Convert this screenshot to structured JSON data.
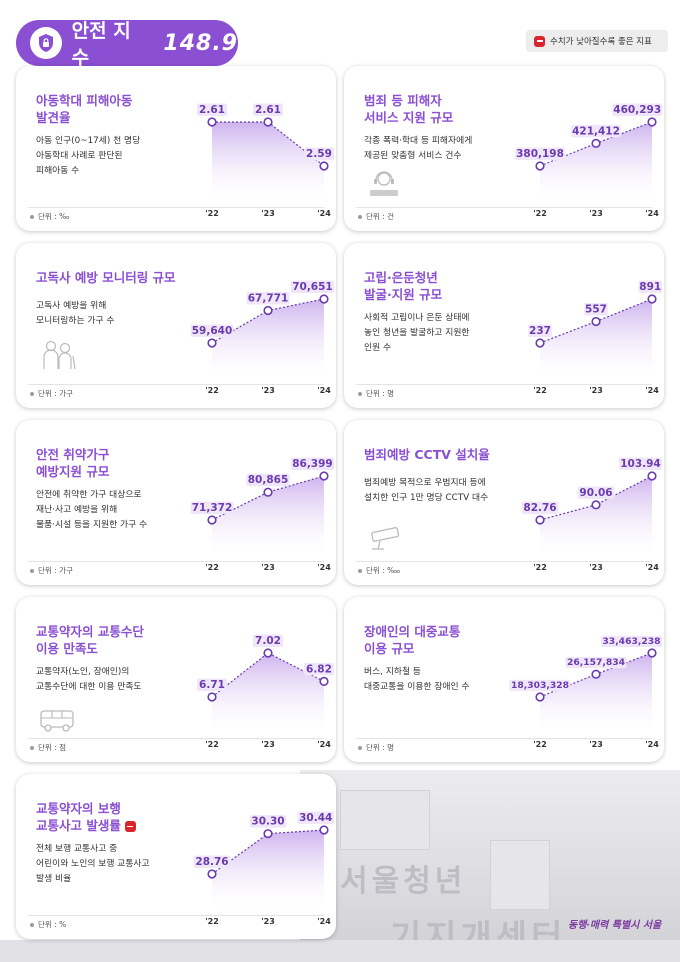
{
  "header": {
    "title": "안전 지수",
    "score": "148.9",
    "legend_note": "수치가 낮아질수록 좋은 지표"
  },
  "colors": {
    "accent": "#8a4fd3",
    "negative_badge": "#d9262c",
    "card_bg": "#ffffff"
  },
  "cards": [
    {
      "title": "아동학대 피해아동\n발견율",
      "desc": "아동 인구(0~17세) 천 명당\n아동학대 사례로 판단된\n피해아동 수",
      "unit": "단위 : ‰",
      "icon": null,
      "negative_indicator": false,
      "years": [
        "'22",
        "'23",
        "'24"
      ],
      "values": [
        2.61,
        2.61,
        2.59
      ],
      "labels": [
        "2.61",
        "2.61",
        "2.59"
      ]
    },
    {
      "title": "범죄 등 피해자\n서비스 지원 규모",
      "desc": "각종 폭력·학대 등 피해자에게\n제공된 맞춤형 서비스 건수",
      "unit": "단위 : 건",
      "icon": "headset-operator-icon",
      "negative_indicator": false,
      "years": [
        "'22",
        "'23",
        "'24"
      ],
      "values": [
        380198,
        421412,
        460293
      ],
      "labels": [
        "380,198",
        "421,412",
        "460,293"
      ]
    },
    {
      "title": "고독사 예방 모니터링 규모",
      "desc": "고독사 예방을 위해\n모니터링하는 가구 수",
      "unit": "단위 : 가구",
      "icon": "elderly-couple-icon",
      "negative_indicator": false,
      "years": [
        "'22",
        "'23",
        "'24"
      ],
      "values": [
        59640,
        67771,
        70651
      ],
      "labels": [
        "59,640",
        "67,771",
        "70,651"
      ]
    },
    {
      "title": "고립·은둔청년\n발굴·지원 규모",
      "desc": "사회적 고립이나 은둔 상태에\n놓인 청년을 발굴하고 지원한\n인원 수",
      "unit": "단위 : 명",
      "icon": null,
      "negative_indicator": false,
      "years": [
        "'22",
        "'23",
        "'24"
      ],
      "values": [
        237,
        557,
        891
      ],
      "labels": [
        "237",
        "557",
        "891"
      ]
    },
    {
      "title": "안전 취약가구\n예방지원 규모",
      "desc": "안전에 취약한 가구 대상으로\n재난·사고 예방을 위해\n물품·시설 등을 지원한 가구 수",
      "unit": "단위 : 가구",
      "icon": null,
      "negative_indicator": false,
      "years": [
        "'22",
        "'23",
        "'24"
      ],
      "values": [
        71372,
        80865,
        86399
      ],
      "labels": [
        "71,372",
        "80,865",
        "86,399"
      ]
    },
    {
      "title": "범죄예방 CCTV 설치율",
      "desc": "범죄예방 목적으로 우범지대 등에\n설치한 인구 1만 명당 CCTV 대수",
      "unit": "단위 : ‱",
      "icon": "cctv-icon",
      "negative_indicator": false,
      "years": [
        "'22",
        "'23",
        "'24"
      ],
      "values": [
        82.76,
        90.06,
        103.94
      ],
      "labels": [
        "82.76",
        "90.06",
        "103.94"
      ]
    },
    {
      "title": "교통약자의 교통수단\n이용 만족도",
      "desc": "교통약자(노인, 장애인)의\n교통수단에 대한 이용 만족도",
      "unit": "단위 : 점",
      "icon": "bus-icon",
      "negative_indicator": false,
      "years": [
        "'22",
        "'23",
        "'24"
      ],
      "values": [
        6.71,
        7.02,
        6.82
      ],
      "labels": [
        "6.71",
        "7.02",
        "6.82"
      ]
    },
    {
      "title": "장애인의 대중교통\n이용 규모",
      "desc": "버스, 지하철 등\n대중교통을 이용한 장애인 수",
      "unit": "단위 : 명",
      "icon": null,
      "negative_indicator": false,
      "years": [
        "'22",
        "'23",
        "'24"
      ],
      "values": [
        18303328,
        26157834,
        33463238
      ],
      "labels": [
        "18,303,328",
        "26,157,834",
        "33,463,238"
      ]
    },
    {
      "title": "교통약자의 보행\n교통사고 발생률",
      "desc": "전체 보행 교통사고 중\n어린이와 노인의 보행 교통사고\n발생 비율",
      "unit": "단위 : %",
      "icon": null,
      "negative_indicator": true,
      "years": [
        "'22",
        "'23",
        "'24"
      ],
      "values": [
        28.76,
        30.3,
        30.44
      ],
      "labels": [
        "28.76",
        "30.30",
        "30.44"
      ]
    }
  ],
  "footer": {
    "background_sign_text_1": "서울청년",
    "background_sign_text_2": "기지개센터",
    "brand_text": "동행·매력 특별시 서울"
  }
}
